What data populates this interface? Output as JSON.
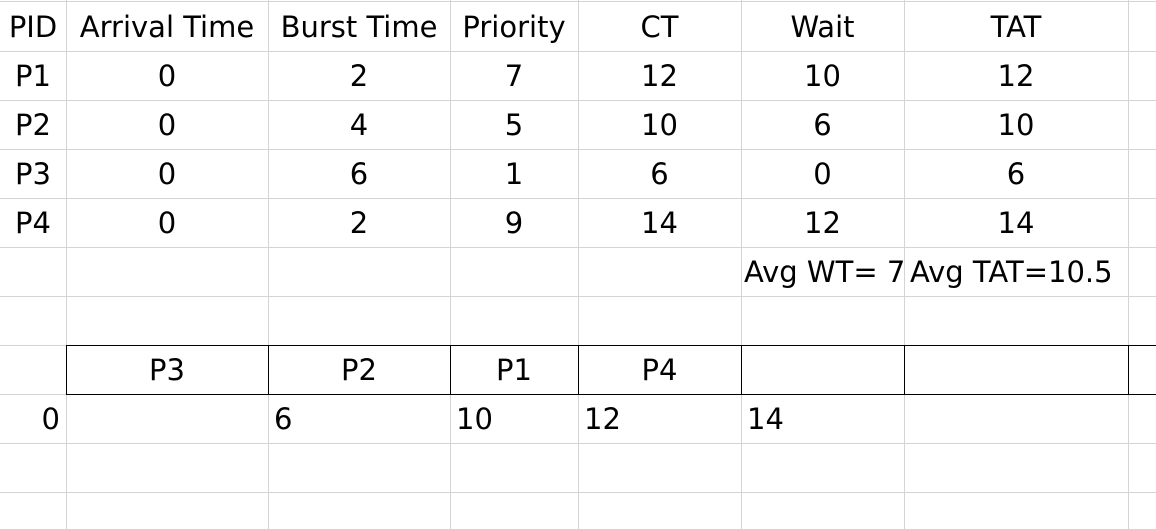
{
  "table": {
    "headers": [
      "PID",
      "Arrival Time",
      "Burst Time",
      "Priority",
      "CT",
      "Wait",
      "TAT"
    ],
    "rows": [
      [
        "P1",
        "0",
        "2",
        "7",
        "12",
        "10",
        "12"
      ],
      [
        "P2",
        "0",
        "4",
        "5",
        "10",
        "6",
        "10"
      ],
      [
        "P3",
        "0",
        "6",
        "1",
        "6",
        "0",
        "6"
      ],
      [
        "P4",
        "0",
        "2",
        "9",
        "14",
        "12",
        "14"
      ]
    ]
  },
  "averages": {
    "wt": "Avg WT= 7",
    "tat": "Avg TAT=10.5"
  },
  "gantt": {
    "processes": [
      "P3",
      "P2",
      "P1",
      "P4"
    ],
    "times": [
      "0",
      "6",
      "10",
      "12",
      "14"
    ]
  }
}
